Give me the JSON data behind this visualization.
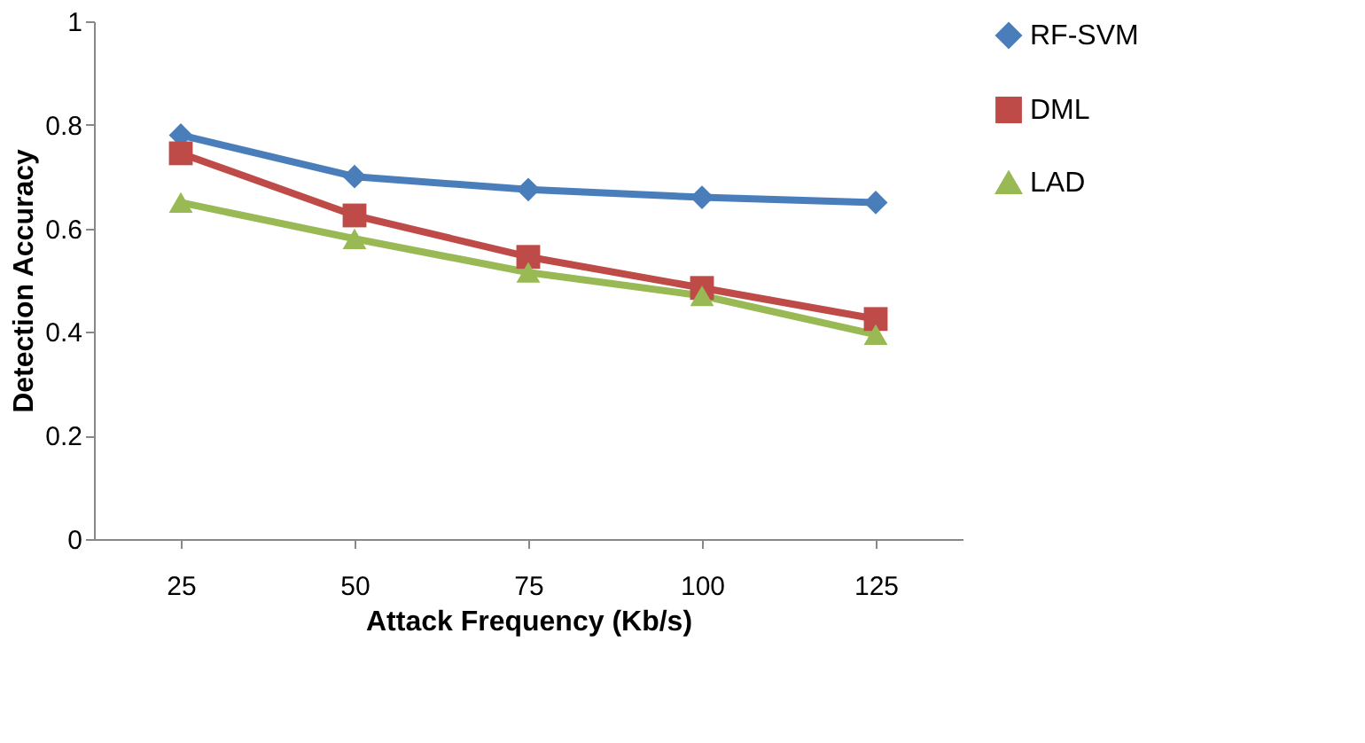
{
  "chart_data": {
    "type": "line",
    "xlabel": "Attack Frequency (Kb/s)",
    "ylabel": "Detection Accuracy",
    "categories": [
      "25",
      "50",
      "75",
      "100",
      "125"
    ],
    "ylim": [
      0,
      1
    ],
    "yticks": [
      0,
      0.2,
      0.4,
      0.6,
      0.8,
      1
    ],
    "legend": "right",
    "line_style": "solid",
    "series": [
      {
        "name": "RF-SVM",
        "color": "#4a7ebb",
        "marker": "diamond",
        "values": [
          0.78,
          0.7,
          0.675,
          0.66,
          0.65
        ]
      },
      {
        "name": "DML",
        "color": "#be4b48",
        "marker": "square",
        "values": [
          0.745,
          0.625,
          0.545,
          0.485,
          0.425
        ]
      },
      {
        "name": "LAD",
        "color": "#98b954",
        "marker": "triangle",
        "values": [
          0.65,
          0.58,
          0.515,
          0.47,
          0.395
        ]
      }
    ]
  }
}
